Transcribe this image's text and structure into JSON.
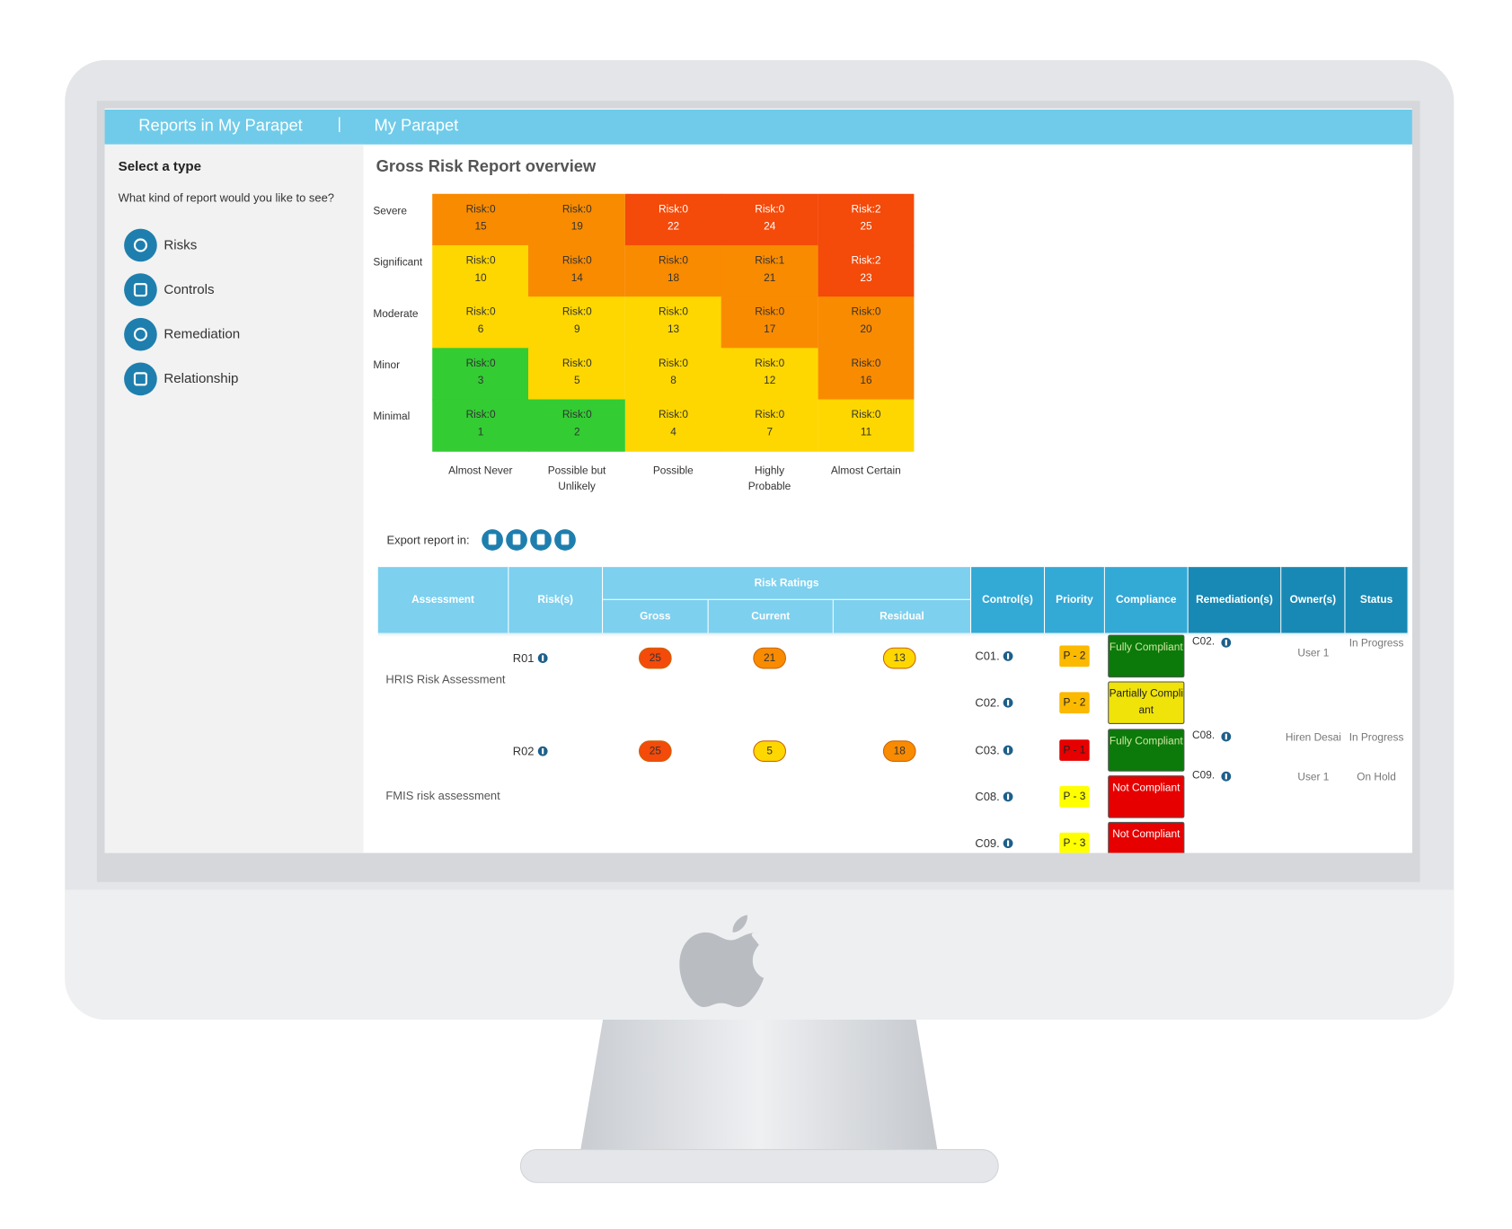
{
  "nav": {
    "items": [
      "Reports in My Parapet",
      "My Parapet"
    ],
    "separator": "|"
  },
  "sidebar": {
    "title": "Select a type",
    "prompt": "What kind of report would you like to see?",
    "items": [
      "Risks",
      "Controls",
      "Remediation",
      "Relationship"
    ]
  },
  "report": {
    "title": "Gross Risk Report overview",
    "row_labels": [
      "Severe",
      "Significant",
      "Moderate",
      "Minor",
      "Minimal"
    ],
    "column_labels": [
      "Almost Never",
      "Possible but Unlikely",
      "Possible",
      "Highly Probable",
      "Almost Certain"
    ],
    "cells": [
      [
        {
          "risk": "Risk:0",
          "score": "15",
          "color": "#f98b00"
        },
        {
          "risk": "Risk:0",
          "score": "19",
          "color": "#f98b00"
        },
        {
          "risk": "Risk:0",
          "score": "22",
          "color": "#f44a0a"
        },
        {
          "risk": "Risk:0",
          "score": "24",
          "color": "#f44a0a"
        },
        {
          "risk": "Risk:2",
          "score": "25",
          "color": "#f44a0a"
        }
      ],
      [
        {
          "risk": "Risk:0",
          "score": "10",
          "color": "#fed700"
        },
        {
          "risk": "Risk:0",
          "score": "14",
          "color": "#f98b00"
        },
        {
          "risk": "Risk:0",
          "score": "18",
          "color": "#f98b00"
        },
        {
          "risk": "Risk:1",
          "score": "21",
          "color": "#f98b00"
        },
        {
          "risk": "Risk:2",
          "score": "23",
          "color": "#f44a0a"
        }
      ],
      [
        {
          "risk": "Risk:0",
          "score": "6",
          "color": "#fed700"
        },
        {
          "risk": "Risk:0",
          "score": "9",
          "color": "#fed700"
        },
        {
          "risk": "Risk:0",
          "score": "13",
          "color": "#fed700"
        },
        {
          "risk": "Risk:0",
          "score": "17",
          "color": "#f98b00"
        },
        {
          "risk": "Risk:0",
          "score": "20",
          "color": "#f98b00"
        }
      ],
      [
        {
          "risk": "Risk:0",
          "score": "3",
          "color": "#33cc33"
        },
        {
          "risk": "Risk:0",
          "score": "5",
          "color": "#fed700"
        },
        {
          "risk": "Risk:0",
          "score": "8",
          "color": "#fed700"
        },
        {
          "risk": "Risk:0",
          "score": "12",
          "color": "#fed700"
        },
        {
          "risk": "Risk:0",
          "score": "16",
          "color": "#f98b00"
        }
      ],
      [
        {
          "risk": "Risk:0",
          "score": "1",
          "color": "#33cc33"
        },
        {
          "risk": "Risk:0",
          "score": "2",
          "color": "#33cc33"
        },
        {
          "risk": "Risk:0",
          "score": "4",
          "color": "#fed700"
        },
        {
          "risk": "Risk:0",
          "score": "7",
          "color": "#fed700"
        },
        {
          "risk": "Risk:0",
          "score": "11",
          "color": "#fed700"
        }
      ]
    ]
  },
  "export": {
    "label": "Export report in:"
  },
  "table": {
    "headers": [
      "Assessment",
      "Risk(s)",
      "Risk Ratings",
      "Gross",
      "Current",
      "Residual",
      "Control(s)",
      "Priority",
      "Compliance",
      "Remediation(s)",
      "Owner(s)",
      "Status"
    ],
    "assessments": [
      "HRIS Risk Assessment",
      "FMIS risk assessment"
    ],
    "risks": [
      {
        "id": "R01",
        "gross": "25",
        "gross_color": "#f44a0a",
        "current": "21",
        "current_color": "#f98b00",
        "residual": "13",
        "residual_color": "#fed700"
      },
      {
        "id": "R02",
        "gross": "25",
        "gross_color": "#f44a0a",
        "current": "5",
        "current_color": "#fed700",
        "residual": "18",
        "residual_color": "#f98b00"
      }
    ],
    "controls": [
      {
        "id": "C01.",
        "priority": "P - 2",
        "priority_color": "#fbb900",
        "compliance": "Fully Compliant",
        "compliance_color": "#0b7a0b"
      },
      {
        "id": "C02.",
        "priority": "P - 2",
        "priority_color": "#fbb900",
        "compliance": "Partially Compliant",
        "compliance_color": "#efe30a"
      },
      {
        "id": "C03.",
        "priority": "P - 1",
        "priority_color": "#e60000",
        "compliance": "Fully Compliant",
        "compliance_color": "#0b7a0b"
      },
      {
        "id": "C08.",
        "priority": "P - 3",
        "priority_color": "#ffff00",
        "compliance": "Not Compliant",
        "compliance_color": "#e60000"
      },
      {
        "id": "C09.",
        "priority": "P - 3",
        "priority_color": "#ffff00",
        "compliance": "Not Compliant",
        "compliance_color": "#e60000"
      }
    ],
    "remediations": [
      {
        "id": "C02.",
        "owner": "User 1",
        "status": "In Progress"
      },
      {
        "id": "C08.",
        "owner": "Hiren Desai",
        "status": "In Progress"
      },
      {
        "id": "C09.",
        "owner": "User 1",
        "status": "On Hold"
      }
    ]
  }
}
